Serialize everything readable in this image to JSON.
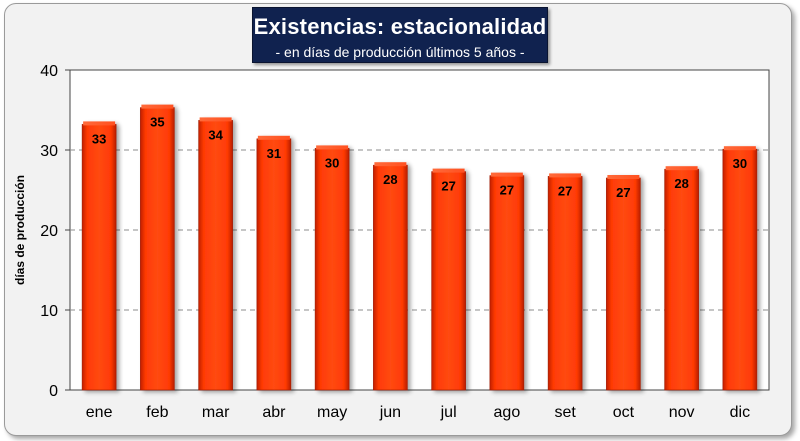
{
  "chart_data": {
    "type": "bar",
    "title": "Existencias: estacionalidad",
    "subtitle": "- en días de producción últimos 5 años -",
    "xlabel": "",
    "ylabel": "días de producción",
    "ylim": [
      0,
      40
    ],
    "yticks": [
      "0",
      "10",
      "20",
      "30",
      "40"
    ],
    "categories": [
      "ene",
      "feb",
      "mar",
      "abr",
      "may",
      "jun",
      "jul",
      "ago",
      "set",
      "oct",
      "nov",
      "dic"
    ],
    "values": [
      33.2,
      35.3,
      33.7,
      31.4,
      30.2,
      28.1,
      27.3,
      26.8,
      26.7,
      26.5,
      27.6,
      30.1
    ],
    "labels": [
      "33",
      "35",
      "34",
      "31",
      "30",
      "28",
      "27",
      "27",
      "27",
      "27",
      "28",
      "30"
    ],
    "grid": "dashed horizontal",
    "bar_color": "#ff3300",
    "title_bg": "#10224f"
  }
}
